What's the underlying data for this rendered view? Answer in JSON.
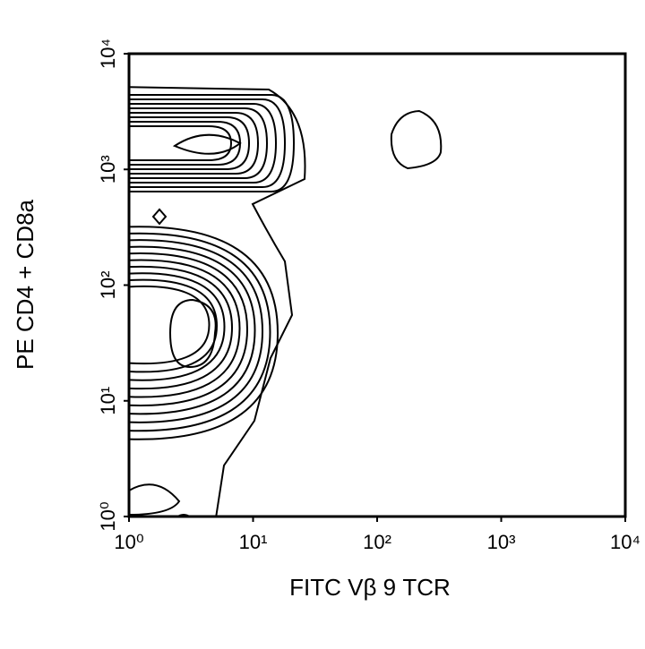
{
  "chart_data": {
    "type": "contour",
    "xlabel": "FITC Vβ 9 TCR",
    "ylabel": "PE CD4 + CD8a",
    "xscale": "log",
    "yscale": "log",
    "xlim": [
      1,
      10000
    ],
    "ylim": [
      1,
      10000
    ],
    "xticks": [
      {
        "value": 1,
        "label": "10⁰"
      },
      {
        "value": 10,
        "label": "10¹"
      },
      {
        "value": 100,
        "label": "10²"
      },
      {
        "value": 1000,
        "label": "10³"
      },
      {
        "value": 10000,
        "label": "10⁴"
      }
    ],
    "yticks": [
      {
        "value": 1,
        "label": "10⁰"
      },
      {
        "value": 10,
        "label": "10¹"
      },
      {
        "value": 100,
        "label": "10²"
      },
      {
        "value": 1000,
        "label": "10³"
      },
      {
        "value": 10000,
        "label": "10⁴"
      }
    ],
    "grid": false
  }
}
